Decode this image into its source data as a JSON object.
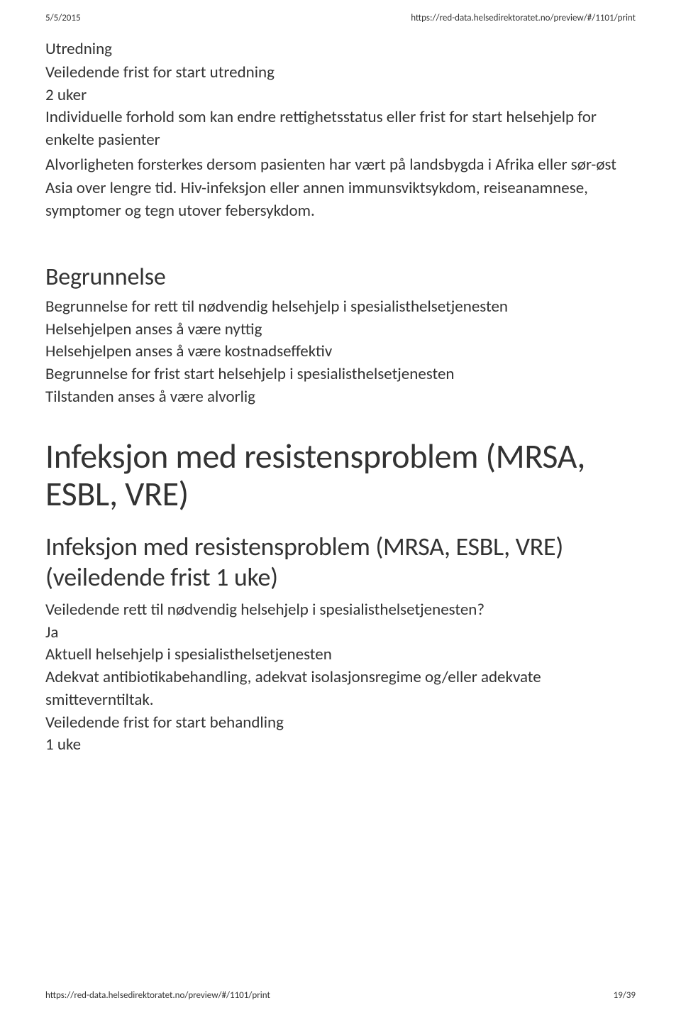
{
  "header": {
    "date": "5/5/2015",
    "url": "https://red-data.helsedirektoratet.no/preview/#/1101/print"
  },
  "footer": {
    "url": "https://red-data.helsedirektoratet.no/preview/#/1101/print",
    "pagenum": "19/39"
  },
  "utredning": {
    "title": "Utredning",
    "line1": "Veiledende frist for start utredning",
    "duration": "2 uker",
    "line2": "Individuelle forhold som kan endre rettighetsstatus eller frist for start helsehjelp for enkelte pasienter",
    "para": "Alvorligheten forsterkes dersom pasienten har vært på landsbygda i Afrika eller sør-øst Asia over lengre tid. Hiv-infeksjon eller annen immunsviktsykdom, reiseanamnese, symptomer og tegn utover febersykdom."
  },
  "begrunnelse": {
    "title": "Begrunnelse",
    "l1": "Begrunnelse for rett til nødvendig helsehjelp i spesialisthelsetjenesten",
    "l2": "Helsehjelpen anses å være nyttig",
    "l3": "Helsehjelpen anses å være kostnadseffektiv",
    "l4": "Begrunnelse for frist start helsehjelp i spesialisthelsetjenesten",
    "l5": "Tilstanden anses å være alvorlig"
  },
  "infeksjon": {
    "h0": "Infeksjon med resistensproblem (MRSA, ESBL, VRE)",
    "h1": "Infeksjon med resistensproblem (MRSA, ESBL, VRE) (veiledende frist 1 uke)",
    "l1": "Veiledende rett til nødvendig helsehjelp i spesialisthelsetjenesten?",
    "l2": "Ja",
    "l3": "Aktuell helsehjelp i spesialisthelsetjenesten",
    "l4": "Adekvat antibiotikabehandling, adekvat isolasjonsregime og/eller adekvate smitteverntiltak.",
    "l5": "Veiledende frist for start behandling",
    "l6": "1 uke"
  },
  "colors": {
    "text": "#333333",
    "background": "#ffffff"
  },
  "typography": {
    "body_pt": 23,
    "h2_pt": 34,
    "h1_pt": 36,
    "h0_pt": 48,
    "header_footer_pt": 13,
    "font_family": "Calibri, Segoe UI, Arial, sans-serif"
  }
}
